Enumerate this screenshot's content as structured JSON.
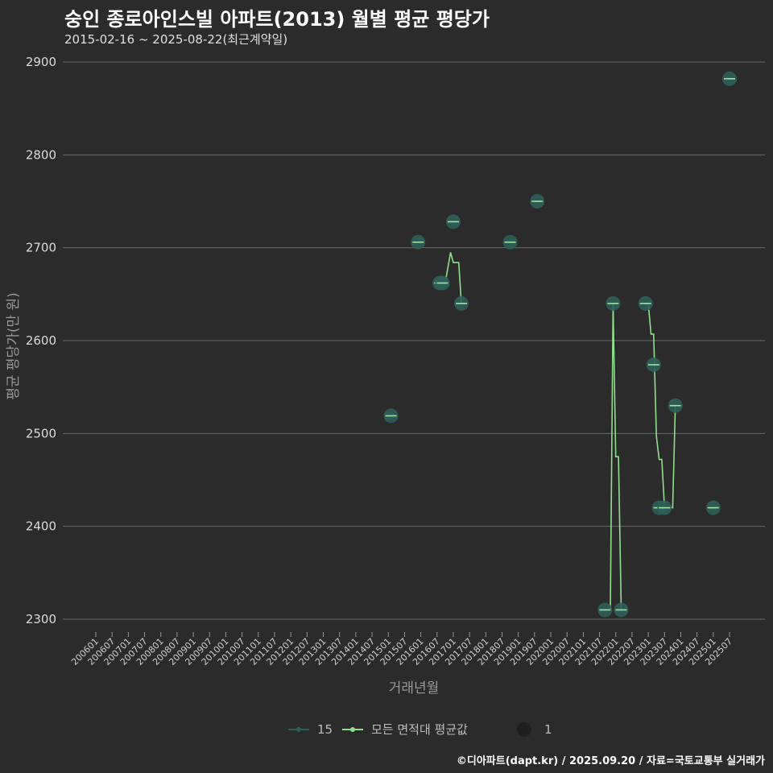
{
  "title": "숭인 종로아인스빌 아파트(2013) 월별 평균 평당가",
  "subtitle": "2015-02-16 ~ 2025-08-22(최근계약일)",
  "caption": "©디아파트(dapt.kr) / 2025.09.20 / 자료=국토교통부 실거래가",
  "colors": {
    "background": "#2b2b2c",
    "grid": "#6a6a6a",
    "point_fill": "#2f5f5a",
    "point_tick": "#9fe4a0",
    "avg_line": "#8fe08a",
    "legend_dot": "#1f1f1f"
  },
  "chart_data": {
    "type": "scatter",
    "title": "숭인 종로아인스빌 아파트(2013) 월별 평균 평당가",
    "subtitle": "2015-02-16 ~ 2025-08-22(최근계약일)",
    "xlabel": "거래년월",
    "ylabel": "평균 평당가(만 원)",
    "ylim": [
      2290,
      2900
    ],
    "yticks": [
      2300,
      2400,
      2500,
      2600,
      2700,
      2800,
      2900
    ],
    "x_range": [
      "2006-01",
      "2025-07"
    ],
    "x_ticks": [
      "200601",
      "200607",
      "200701",
      "200707",
      "200801",
      "200807",
      "200901",
      "200907",
      "201001",
      "201007",
      "201101",
      "201107",
      "201201",
      "201207",
      "201301",
      "201307",
      "201401",
      "201407",
      "201501",
      "201507",
      "201601",
      "201607",
      "201701",
      "201707",
      "201801",
      "201807",
      "201901",
      "201907",
      "202001",
      "202007",
      "202101",
      "202107",
      "202201",
      "202207",
      "202301",
      "202307",
      "202401",
      "202407",
      "202501",
      "202507"
    ],
    "grid": true,
    "legend_position": "bottom",
    "series": [
      {
        "name": "15",
        "kind": "points",
        "points": [
          {
            "x": "2015-02",
            "y": 2519
          },
          {
            "x": "2015-12",
            "y": 2706
          },
          {
            "x": "2016-08",
            "y": 2662
          },
          {
            "x": "2016-09",
            "y": 2662
          },
          {
            "x": "2017-01",
            "y": 2728
          },
          {
            "x": "2017-04",
            "y": 2640
          },
          {
            "x": "2018-10",
            "y": 2706
          },
          {
            "x": "2019-08",
            "y": 2750
          },
          {
            "x": "2021-09",
            "y": 2310
          },
          {
            "x": "2021-12",
            "y": 2640
          },
          {
            "x": "2022-03",
            "y": 2310
          },
          {
            "x": "2022-12",
            "y": 2640
          },
          {
            "x": "2023-03",
            "y": 2574
          },
          {
            "x": "2023-05",
            "y": 2420
          },
          {
            "x": "2023-07",
            "y": 2420
          },
          {
            "x": "2023-11",
            "y": 2530
          },
          {
            "x": "2025-01",
            "y": 2420
          },
          {
            "x": "2025-07",
            "y": 2882
          }
        ]
      },
      {
        "name": "모든 면적대 평균값",
        "kind": "line",
        "segments": [
          [
            {
              "x": "2016-08",
              "y": 2662
            },
            {
              "x": "2016-10",
              "y": 2662
            },
            {
              "x": "2016-12",
              "y": 2695
            },
            {
              "x": "2017-01",
              "y": 2684
            },
            {
              "x": "2017-03",
              "y": 2684
            },
            {
              "x": "2017-04",
              "y": 2640
            }
          ],
          [
            {
              "x": "2021-09",
              "y": 2310
            },
            {
              "x": "2021-11",
              "y": 2310
            },
            {
              "x": "2021-12",
              "y": 2640
            },
            {
              "x": "2022-01",
              "y": 2475
            },
            {
              "x": "2022-02",
              "y": 2475
            },
            {
              "x": "2022-03",
              "y": 2310
            }
          ],
          [
            {
              "x": "2022-12",
              "y": 2640
            },
            {
              "x": "2023-01",
              "y": 2640
            },
            {
              "x": "2023-02",
              "y": 2607
            },
            {
              "x": "2023-03",
              "y": 2607
            },
            {
              "x": "2023-04",
              "y": 2497
            },
            {
              "x": "2023-05",
              "y": 2472
            },
            {
              "x": "2023-06",
              "y": 2472
            },
            {
              "x": "2023-07",
              "y": 2420
            },
            {
              "x": "2023-10",
              "y": 2420
            },
            {
              "x": "2023-11",
              "y": 2530
            },
            {
              "x": "2023-12",
              "y": 2530
            }
          ]
        ]
      }
    ],
    "size_legend": {
      "label": "1"
    }
  }
}
